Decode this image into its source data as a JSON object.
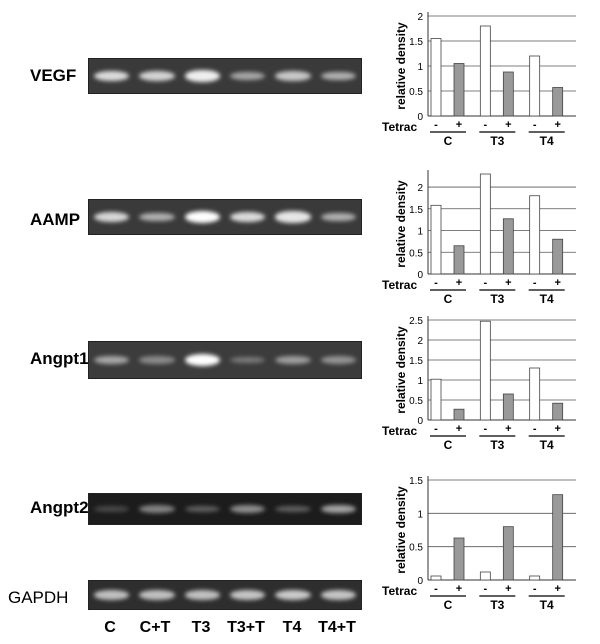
{
  "lanes": [
    "C",
    "C+T",
    "T3",
    "T3+T",
    "T4",
    "T4+T"
  ],
  "gels": [
    {
      "label": "VEGF",
      "bold": true,
      "bg": "#3a3a3a",
      "intensities": [
        0.82,
        0.78,
        0.92,
        0.55,
        0.72,
        0.6
      ]
    },
    {
      "label": "AAMP",
      "bold": true,
      "bg": "#3a3a3a",
      "intensities": [
        0.8,
        0.6,
        1.0,
        0.82,
        0.88,
        0.6
      ]
    },
    {
      "label": "Angpt1",
      "bold": true,
      "bg": "#3c3c3c",
      "intensities": [
        0.55,
        0.4,
        1.0,
        0.32,
        0.5,
        0.45
      ]
    },
    {
      "label": "Angpt2",
      "bold": true,
      "bg": "#1c1c1c",
      "intensities": [
        0.2,
        0.45,
        0.3,
        0.5,
        0.3,
        0.6
      ]
    },
    {
      "label": "GAPDH",
      "bold": false,
      "bg": "#2e2e2e",
      "intensities": [
        0.7,
        0.7,
        0.7,
        0.72,
        0.75,
        0.72
      ]
    }
  ],
  "chart_data": [
    {
      "type": "bar",
      "gene": "VEGF",
      "ylabel": "relative density",
      "ylim": [
        0,
        2
      ],
      "yticks": [
        "0",
        "0.5",
        "1",
        "1.5",
        "2"
      ],
      "treatment_label": "Tetrac",
      "groups": [
        "C",
        "T3",
        "T4"
      ],
      "signs": [
        "-",
        "+"
      ],
      "series": [
        {
          "values": [
            1.55,
            1.8,
            1.2
          ]
        },
        {
          "values": [
            1.05,
            0.88,
            0.57
          ]
        }
      ]
    },
    {
      "type": "bar",
      "gene": "AAMP",
      "ylabel": "relative density",
      "ylim": [
        0,
        2.3
      ],
      "yticks": [
        "0",
        "0.5",
        "1",
        "1.5",
        "2"
      ],
      "treatment_label": "Tetrac",
      "groups": [
        "C",
        "T3",
        "T4"
      ],
      "signs": [
        "-",
        "+"
      ],
      "series": [
        {
          "values": [
            1.58,
            2.3,
            1.8
          ]
        },
        {
          "values": [
            0.65,
            1.27,
            0.8
          ]
        }
      ]
    },
    {
      "type": "bar",
      "gene": "Angpt1",
      "ylabel": "relative density",
      "ylim": [
        0,
        2.5
      ],
      "yticks": [
        "0",
        "0.5",
        "1",
        "1.5",
        "2",
        "2.5"
      ],
      "treatment_label": "Tetrac",
      "groups": [
        "C",
        "T3",
        "T4"
      ],
      "signs": [
        "-",
        "+"
      ],
      "series": [
        {
          "values": [
            1.02,
            2.47,
            1.3
          ]
        },
        {
          "values": [
            0.27,
            0.65,
            0.42
          ]
        }
      ]
    },
    {
      "type": "bar",
      "gene": "Angpt2",
      "ylabel": "relative density",
      "ylim": [
        0,
        1.5
      ],
      "yticks": [
        "0",
        "0.5",
        "1",
        "1.5"
      ],
      "treatment_label": "Tetrac",
      "groups": [
        "C",
        "T3",
        "T4"
      ],
      "signs": [
        "-",
        "+"
      ],
      "series": [
        {
          "values": [
            0.06,
            0.12,
            0.06
          ]
        },
        {
          "values": [
            0.63,
            0.8,
            1.28
          ]
        }
      ]
    }
  ],
  "colors": {
    "untreated_bar": "#ffffff",
    "treated_bar": "#999999",
    "band": "#ffffff"
  }
}
